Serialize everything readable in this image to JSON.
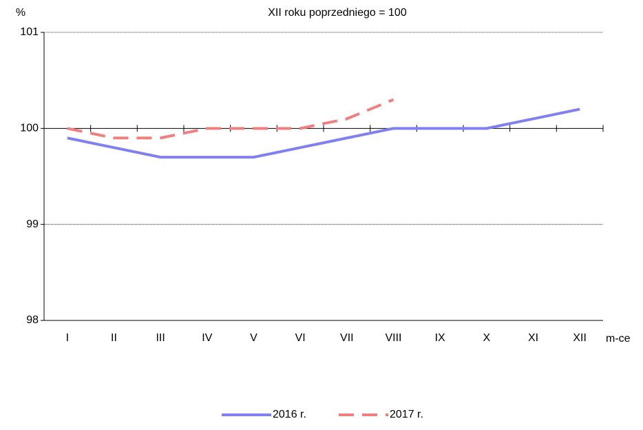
{
  "chart_data": {
    "type": "line",
    "title": "XII roku poprzedniego = 100",
    "y_label": "%",
    "x_label": "m-ce",
    "categories": [
      "I",
      "II",
      "III",
      "IV",
      "V",
      "VI",
      "VII",
      "VIII",
      "IX",
      "X",
      "XI",
      "XII"
    ],
    "series": [
      {
        "name": "2016 r.",
        "color": "#8080f0",
        "dashed": false,
        "values": [
          99.9,
          99.8,
          99.7,
          99.7,
          99.7,
          99.8,
          99.9,
          100,
          100,
          100,
          100.1,
          100.2
        ]
      },
      {
        "name": "2017 r.",
        "color": "#f08080",
        "dashed": true,
        "values": [
          100,
          99.9,
          99.9,
          100,
          100,
          100,
          100.1,
          100.3,
          null,
          null,
          null,
          null
        ]
      }
    ],
    "ylim": [
      98,
      101
    ],
    "yticks": [
      98,
      99,
      100,
      101
    ],
    "baseline": 100,
    "grid": true,
    "legend": "bottom"
  }
}
